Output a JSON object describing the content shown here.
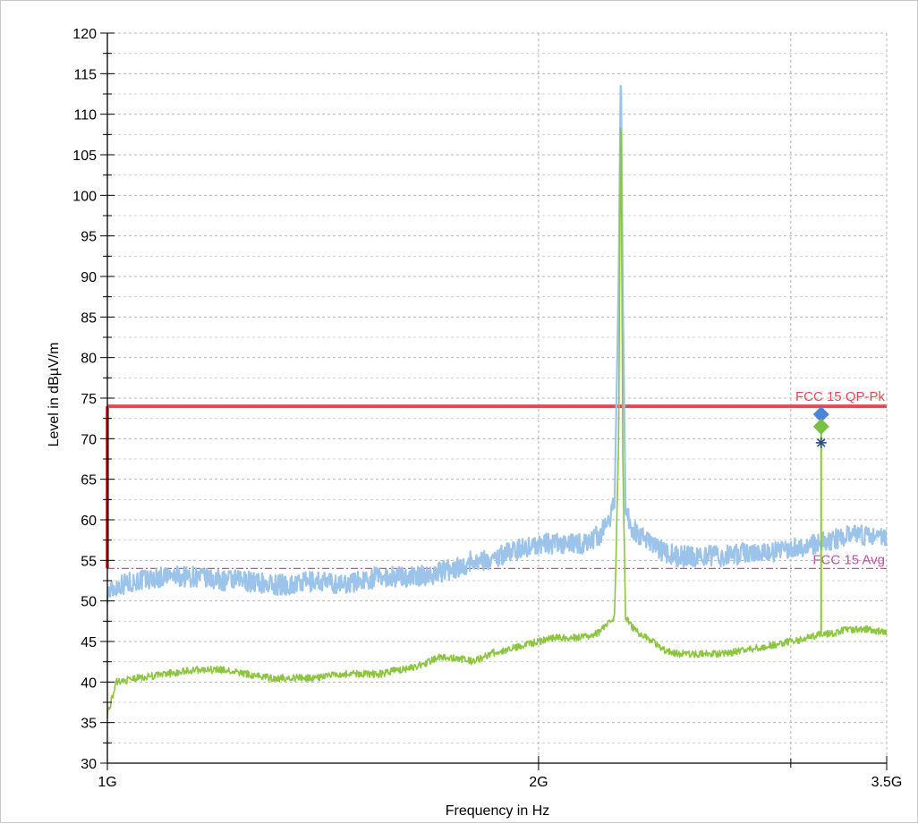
{
  "chart_data": {
    "type": "line",
    "title": "",
    "xlabel": "Frequency in Hz",
    "ylabel": "Level in dBµV/m",
    "x_scale": "log",
    "xlim_hz": [
      1000000000,
      3500000000
    ],
    "ylim": [
      30,
      120
    ],
    "y_major_ticks": [
      30,
      35,
      40,
      45,
      50,
      55,
      60,
      65,
      70,
      75,
      80,
      85,
      90,
      95,
      100,
      105,
      110,
      115,
      120
    ],
    "x_tick_labels": [
      {
        "value_hz": 1000000000,
        "label": "1G"
      },
      {
        "value_hz": 2000000000,
        "label": "2G"
      },
      {
        "value_hz": 3500000000,
        "label": "3.5G"
      }
    ],
    "x_minor_grid_hz": [
      3000000000
    ],
    "grid": true,
    "limits": [
      {
        "name": "FCC 15 QP-Pk",
        "color": "#e8484f",
        "style": "solid",
        "level": 74,
        "x_start_hz": 1000000000,
        "x_end_hz": 3500000000,
        "left_drop_to": 54
      },
      {
        "name": "FCC 15 Avg",
        "color": "#c34fa6",
        "style": "dashdot",
        "level": 54,
        "x_start_hz": 1000000000,
        "x_end_hz": 3500000000
      }
    ],
    "series": [
      {
        "color": "#9cc4ea",
        "x_hz": [
          1000000000,
          1020000000,
          1050000000,
          1100000000,
          1150000000,
          1200000000,
          1250000000,
          1300000000,
          1350000000,
          1400000000,
          1450000000,
          1500000000,
          1550000000,
          1600000000,
          1650000000,
          1700000000,
          1750000000,
          1800000000,
          1850000000,
          1900000000,
          1950000000,
          2000000000,
          2050000000,
          2100000000,
          2150000000,
          2200000000,
          2230000000,
          2260000000,
          2275000000,
          2283000000,
          2290000000,
          2300000000,
          2320000000,
          2350000000,
          2400000000,
          2450000000,
          2500000000,
          2600000000,
          2700000000,
          2800000000,
          2900000000,
          3000000000,
          3100000000,
          3200000000,
          3300000000,
          3400000000,
          3500000000
        ],
        "y": [
          51,
          52,
          52.5,
          53,
          53,
          52.5,
          52.5,
          52,
          52,
          52.5,
          52,
          52.5,
          53,
          53,
          53,
          53.5,
          54,
          55,
          55,
          56,
          56.5,
          57,
          57,
          57,
          57,
          58,
          59,
          62,
          90,
          117,
          88,
          62,
          59,
          58,
          57,
          56,
          55.5,
          55.5,
          55.5,
          56,
          56,
          56.5,
          57,
          57.5,
          58,
          58,
          58
        ]
      },
      {
        "color": "#8cc63f",
        "x_hz": [
          1000000000,
          1015000000,
          1050000000,
          1100000000,
          1150000000,
          1200000000,
          1250000000,
          1300000000,
          1350000000,
          1400000000,
          1450000000,
          1500000000,
          1550000000,
          1600000000,
          1650000000,
          1700000000,
          1750000000,
          1800000000,
          1850000000,
          1900000000,
          1950000000,
          2000000000,
          2050000000,
          2100000000,
          2150000000,
          2200000000,
          2230000000,
          2260000000,
          2275000000,
          2283000000,
          2290000000,
          2300000000,
          2320000000,
          2350000000,
          2400000000,
          2450000000,
          2500000000,
          2600000000,
          2700000000,
          2800000000,
          2900000000,
          3000000000,
          3100000000,
          3150000000,
          3200000000,
          3300000000,
          3400000000,
          3500000000
        ],
        "y": [
          36,
          40,
          40.5,
          41,
          41.5,
          41.5,
          41,
          40.5,
          40.5,
          40.5,
          41,
          41,
          41,
          41.5,
          42,
          43,
          43,
          42.5,
          43.5,
          44,
          44.5,
          45,
          45.5,
          45.5,
          45.5,
          46,
          47,
          48,
          70,
          114,
          68,
          48,
          47,
          46,
          45,
          44,
          43.5,
          43.5,
          43.5,
          44,
          44.5,
          45,
          45.5,
          46,
          46,
          46.5,
          46.5,
          46
        ]
      }
    ],
    "markers": [
      {
        "shape": "diamond",
        "color": "#4a86d4",
        "x_hz": 3150000000,
        "y": 73
      },
      {
        "shape": "diamond",
        "color": "#7bbf45",
        "x_hz": 3150000000,
        "y": 71.5
      },
      {
        "shape": "asterisk",
        "color": "#2b4c9b",
        "x_hz": 3150000000,
        "y": 69.5
      }
    ],
    "marker_stem": {
      "color": "#8cc63f",
      "x_hz": 3150000000,
      "y_from": 46,
      "y_to": 71.5
    }
  }
}
